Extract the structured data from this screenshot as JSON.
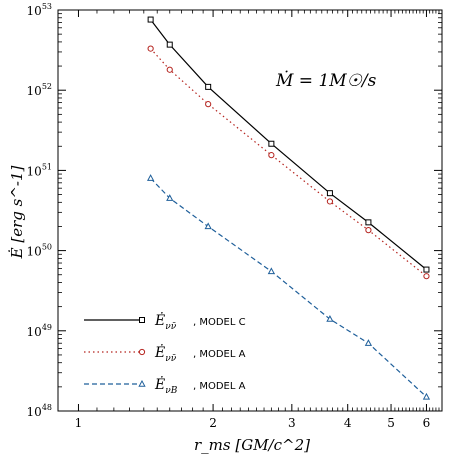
{
  "chart_data": {
    "type": "line",
    "xscale": "log",
    "yscale": "log",
    "xlim": [
      0.9,
      6.5
    ],
    "ylim": [
      1e+48,
      1e+53
    ],
    "xlabel": "r_ms [GM/c^2]",
    "ylabel": "Ė [erg s^-1]",
    "annotation": "Ṁ = 1M☉/s",
    "x_ticks": [
      {
        "value": 1,
        "label": "1"
      },
      {
        "value": 2,
        "label": "2"
      },
      {
        "value": 3,
        "label": "3"
      },
      {
        "value": 4,
        "label": "4"
      },
      {
        "value": 5,
        "label": "5"
      },
      {
        "value": 6,
        "label": "6"
      }
    ],
    "y_ticks": [
      {
        "value": 1e+48,
        "base": "10",
        "exp": "48"
      },
      {
        "value": 1e+49,
        "base": "10",
        "exp": "49"
      },
      {
        "value": 1e+50,
        "base": "10",
        "exp": "50"
      },
      {
        "value": 1e+51,
        "base": "10",
        "exp": "51"
      },
      {
        "value": 1e+52,
        "base": "10",
        "exp": "52"
      },
      {
        "value": 1e+53,
        "base": "10",
        "exp": "53"
      }
    ],
    "legend_position": "bottom-left",
    "series": [
      {
        "name": "Ė_νν̄ , MODEL C",
        "symbol": "Ė",
        "subscript": "νν̄",
        "model": ", MODEL C",
        "color": "#000000",
        "dash": "none",
        "marker": "square",
        "x": [
          1.45,
          1.6,
          1.95,
          2.7,
          3.65,
          4.45,
          6.0
        ],
        "y": [
          7.6e+52,
          3.7e+52,
          1.1e+52,
          2.15e+51,
          5.2e+50,
          2.25e+50,
          5.8e+49
        ]
      },
      {
        "name": "Ė_νν̄ , MODEL A",
        "symbol": "Ė",
        "subscript": "νν̄",
        "model": ", MODEL A",
        "color": "#b5241f",
        "dash": "1.5 3",
        "marker": "circle",
        "x": [
          1.45,
          1.6,
          1.95,
          2.7,
          3.65,
          4.45,
          6.0
        ],
        "y": [
          3.3e+52,
          1.8e+52,
          6.7e+51,
          1.55e+51,
          4.1e+50,
          1.8e+50,
          4.8e+49
        ]
      },
      {
        "name": "Ė_νB , MODEL A",
        "symbol": "Ė",
        "subscript": "νB",
        "model": ", MODEL A",
        "color": "#1f5f9a",
        "dash": "5 3",
        "marker": "triangle",
        "x": [
          1.45,
          1.6,
          1.95,
          2.7,
          3.65,
          4.45,
          6.0
        ],
        "y": [
          8e+50,
          4.5e+50,
          2e+50,
          5.5e+49,
          1.4e+49,
          7e+48,
          1.5e+48
        ]
      }
    ]
  }
}
